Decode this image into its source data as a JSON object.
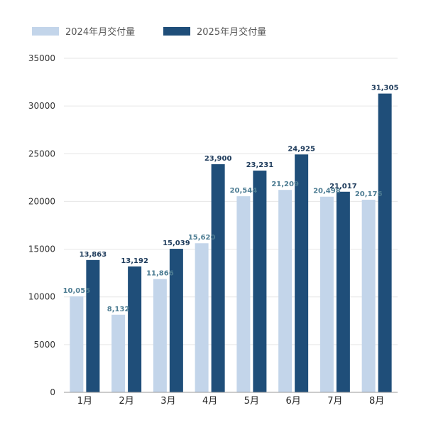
{
  "chart_data": {
    "type": "bar",
    "title": "",
    "xlabel": "",
    "ylabel": "",
    "ylim": [
      0,
      35000
    ],
    "yticks": [
      0,
      5000,
      10000,
      15000,
      20000,
      25000,
      30000,
      35000
    ],
    "grid": true,
    "legend_position": "top-left",
    "categories": [
      "1月",
      "2月",
      "3月",
      "4月",
      "5月",
      "6月",
      "7月",
      "8月"
    ],
    "series": [
      {
        "name": "2024年月交付量",
        "color": "#c3d5ea",
        "label_color": "#4e7d93",
        "values": [
          10055,
          8132,
          11866,
          15620,
          20544,
          21209,
          20498,
          20176
        ],
        "labels": [
          "10,055",
          "8,132",
          "11,866",
          "15,620",
          "20,544",
          "21,209",
          "20,498",
          "20,176"
        ]
      },
      {
        "name": "2025年月交付量",
        "color": "#1f4e79",
        "label_color": "#1f3c5c",
        "values": [
          13863,
          13192,
          15039,
          23900,
          23231,
          24925,
          21017,
          31305
        ],
        "labels": [
          "13,863",
          "13,192",
          "15,039",
          "23,900",
          "23,231",
          "24,925",
          "21,017",
          "31,305"
        ]
      }
    ]
  }
}
